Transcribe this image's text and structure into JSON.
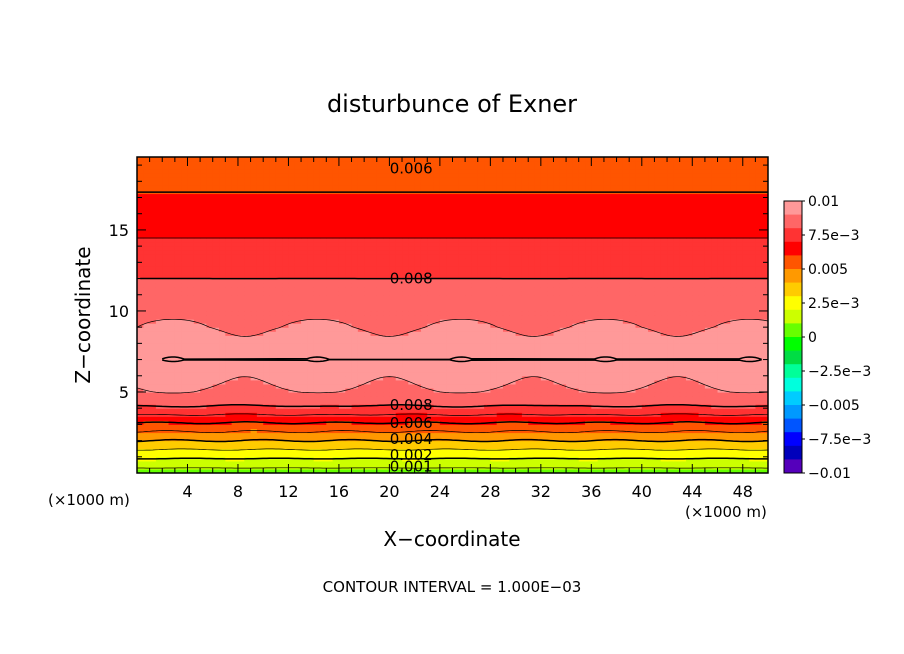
{
  "chart_data": {
    "type": "heatmap",
    "title": "disturbunce of Exner",
    "xlabel": "X−coordinate",
    "ylabel": "Z−coordinate",
    "x_unit_left": "(×1000 m)",
    "x_unit_right": "(×1000 m)",
    "footer": "CONTOUR INTERVAL = 1.000E−03",
    "xlim": [
      0,
      50
    ],
    "ylim": [
      0,
      19.5
    ],
    "x_ticks": [
      4,
      8,
      12,
      16,
      20,
      24,
      28,
      32,
      36,
      40,
      44,
      48
    ],
    "y_ticks": [
      5,
      10,
      15
    ],
    "contour_interval": 0.001,
    "contour_labels": [
      {
        "text": "0.006",
        "x": 18,
        "z": 18.8
      },
      {
        "text": "0.008",
        "x": 18,
        "z": 12.0
      },
      {
        "text": "0.008",
        "x": 18,
        "z": 4.2
      },
      {
        "text": "0.006",
        "x": 18,
        "z": 3.1
      },
      {
        "text": "0.004",
        "x": 18,
        "z": 2.1
      },
      {
        "text": "0.002",
        "x": 18,
        "z": 1.1
      },
      {
        "text": "0.001",
        "x": 18,
        "z": 0.4
      }
    ],
    "colorbar": {
      "vmin": -0.01,
      "vmax": 0.01,
      "tick_labels": [
        "0.01",
        "7.5e−3",
        "0.005",
        "2.5e−3",
        "0",
        "−2.5e−3",
        "−0.005",
        "−7.5e−3",
        "−0.01"
      ],
      "colors": [
        "#ff9999",
        "#ff6666",
        "#ff3333",
        "#ff0000",
        "#ff5500",
        "#ff9900",
        "#ffcc00",
        "#ffff00",
        "#ccff00",
        "#66ff00",
        "#00ff00",
        "#00dd44",
        "#00ff99",
        "#00ffdd",
        "#00ccff",
        "#0099ff",
        "#0055ff",
        "#0000ff",
        "#0000bb",
        "#5500bb"
      ]
    },
    "profile": {
      "z": [
        0,
        0.5,
        1,
        1.5,
        2,
        2.5,
        3,
        3.5,
        4,
        4.5,
        5,
        6,
        7,
        8,
        9,
        10,
        11,
        12,
        13,
        14,
        15,
        16,
        17,
        18,
        19,
        19.5
      ],
      "value": [
        0.0005,
        0.0013,
        0.0022,
        0.0031,
        0.004,
        0.0049,
        0.0058,
        0.0068,
        0.0078,
        0.0085,
        0.0089,
        0.0093,
        0.0097,
        0.0094,
        0.009,
        0.0088,
        0.0084,
        0.008,
        0.0076,
        0.0072,
        0.0068,
        0.0064,
        0.0061,
        0.0058,
        0.0055,
        0.0053
      ]
    }
  }
}
